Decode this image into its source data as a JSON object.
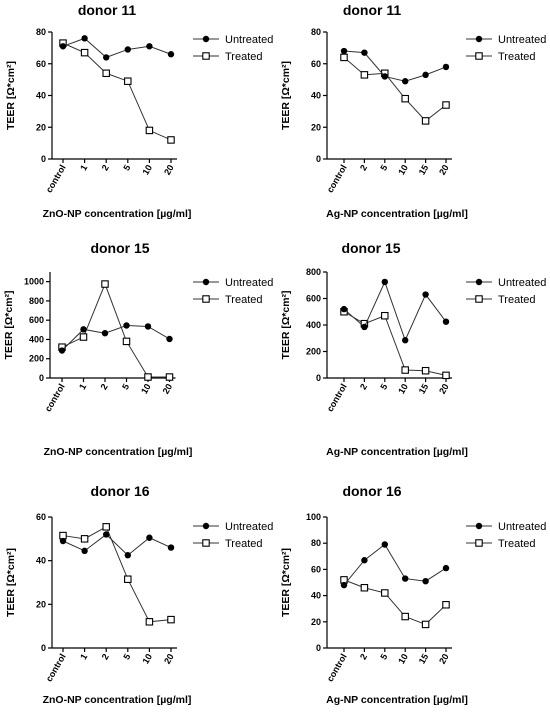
{
  "chart_data": [
    {
      "type": "line",
      "title": "donor 11",
      "xlabel": "ZnO-NP concentration [µg/ml]",
      "ylabel": "TEER [Ω*cm²]",
      "categories": [
        "control",
        "1",
        "2",
        "5",
        "10",
        "20"
      ],
      "ylim": [
        0,
        80
      ],
      "yticks": [
        0,
        20,
        40,
        60,
        80
      ],
      "grid": false,
      "legend_position": "top-right",
      "series": [
        {
          "name": "Untreated",
          "marker": "filled-circle",
          "values": [
            71,
            76,
            64,
            69,
            71,
            66
          ]
        },
        {
          "name": "Treated",
          "marker": "open-square",
          "values": [
            73,
            67,
            54,
            49,
            18,
            12
          ]
        }
      ]
    },
    {
      "type": "line",
      "title": "donor 11",
      "xlabel": "Ag-NP concentration [µg/ml]",
      "ylabel": "TEER [Ω*cm²]",
      "categories": [
        "control",
        "2",
        "5",
        "10",
        "15",
        "20"
      ],
      "ylim": [
        0,
        80
      ],
      "yticks": [
        0,
        20,
        40,
        60,
        80
      ],
      "grid": false,
      "legend_position": "top-right",
      "series": [
        {
          "name": "Untreated",
          "marker": "filled-circle",
          "values": [
            68,
            67,
            52,
            49,
            53,
            58
          ]
        },
        {
          "name": "Treated",
          "marker": "open-square",
          "values": [
            64,
            53,
            54,
            38,
            24,
            34
          ]
        }
      ]
    },
    {
      "type": "line",
      "title": "donor 15",
      "xlabel": "ZnO-NP concentration [µg/ml]",
      "ylabel": "TEER [Ω*cm²]",
      "categories": [
        "control",
        "1",
        "2",
        "5",
        "10",
        "20"
      ],
      "ylim": [
        0,
        1100
      ],
      "yticks": [
        0,
        200,
        400,
        600,
        800,
        1000
      ],
      "grid": false,
      "legend_position": "top-right",
      "series": [
        {
          "name": "Untreated",
          "marker": "filled-circle",
          "values": [
            285,
            505,
            465,
            545,
            535,
            405
          ]
        },
        {
          "name": "Treated",
          "marker": "open-square",
          "values": [
            320,
            425,
            975,
            380,
            10,
            10
          ]
        }
      ]
    },
    {
      "type": "line",
      "title": "donor 15",
      "xlabel": "Ag-NP concentration [µg/ml]",
      "ylabel": "TEER [Ω*cm²]",
      "categories": [
        "control",
        "2",
        "5",
        "10",
        "15",
        "20"
      ],
      "ylim": [
        0,
        800
      ],
      "yticks": [
        0,
        200,
        400,
        600,
        800
      ],
      "grid": false,
      "legend_position": "top-right",
      "series": [
        {
          "name": "Untreated",
          "marker": "filled-circle",
          "values": [
            520,
            385,
            725,
            285,
            630,
            425
          ]
        },
        {
          "name": "Treated",
          "marker": "open-square",
          "values": [
            500,
            410,
            470,
            60,
            55,
            20
          ]
        }
      ]
    },
    {
      "type": "line",
      "title": "donor 16",
      "xlabel": "ZnO-NP concentration [µg/ml]",
      "ylabel": "TEER [Ω*cm²]",
      "categories": [
        "control",
        "1",
        "2",
        "5",
        "10",
        "20"
      ],
      "ylim": [
        0,
        60
      ],
      "yticks": [
        0,
        20,
        40,
        60
      ],
      "grid": false,
      "legend_position": "top-right",
      "series": [
        {
          "name": "Untreated",
          "marker": "filled-circle",
          "values": [
            49,
            44.5,
            52,
            42.5,
            50.5,
            46
          ]
        },
        {
          "name": "Treated",
          "marker": "open-square",
          "values": [
            51.5,
            50,
            55.5,
            31.5,
            12,
            13
          ]
        }
      ]
    },
    {
      "type": "line",
      "title": "donor 16",
      "xlabel": "Ag-NP concentration [µg/ml]",
      "ylabel": "TEER [Ω*cm²]",
      "categories": [
        "control",
        "2",
        "5",
        "10",
        "15",
        "20"
      ],
      "ylim": [
        0,
        100
      ],
      "yticks": [
        0,
        20,
        40,
        60,
        80,
        100
      ],
      "grid": false,
      "legend_position": "top-right",
      "series": [
        {
          "name": "Untreated",
          "marker": "filled-circle",
          "values": [
            48,
            67,
            79,
            53,
            51,
            61
          ]
        },
        {
          "name": "Treated",
          "marker": "open-square",
          "values": [
            52,
            46,
            42,
            24,
            18,
            33
          ]
        }
      ]
    }
  ]
}
